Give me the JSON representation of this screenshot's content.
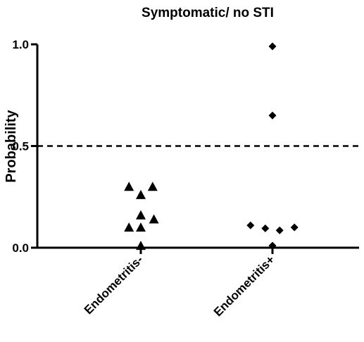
{
  "chart_data": {
    "type": "scatter",
    "title": "Symptomatic/ no STI",
    "ylabel": "Probability",
    "xlabel": "",
    "ylim": [
      0,
      1.0
    ],
    "yticks": [
      {
        "value": 0.0,
        "label": "0.0"
      },
      {
        "value": 0.5,
        "label": "0.5"
      },
      {
        "value": 1.0,
        "label": "1.0"
      }
    ],
    "reference_line": {
      "value": 0.5,
      "style": "dashed"
    },
    "grid": false,
    "categories": [
      "Endometritis-",
      "Endometritis+"
    ],
    "series": [
      {
        "category": "Endometritis-",
        "marker": "triangle",
        "points": [
          {
            "offset": -0.28,
            "y": 0.3
          },
          {
            "offset": 0.28,
            "y": 0.3
          },
          {
            "offset": 0.0,
            "y": 0.26
          },
          {
            "offset": 0.0,
            "y": 0.16
          },
          {
            "offset": 0.31,
            "y": 0.14
          },
          {
            "offset": -0.28,
            "y": 0.1
          },
          {
            "offset": 0.0,
            "y": 0.1
          },
          {
            "offset": 0.0,
            "y": 0.01
          }
        ]
      },
      {
        "category": "Endometritis+",
        "marker": "diamond",
        "points": [
          {
            "offset": 0.0,
            "y": 0.99
          },
          {
            "offset": 0.0,
            "y": 0.65
          },
          {
            "offset": -0.52,
            "y": 0.11
          },
          {
            "offset": -0.17,
            "y": 0.095
          },
          {
            "offset": 0.17,
            "y": 0.085
          },
          {
            "offset": 0.52,
            "y": 0.1
          },
          {
            "offset": 0.0,
            "y": 0.01
          }
        ]
      }
    ]
  }
}
